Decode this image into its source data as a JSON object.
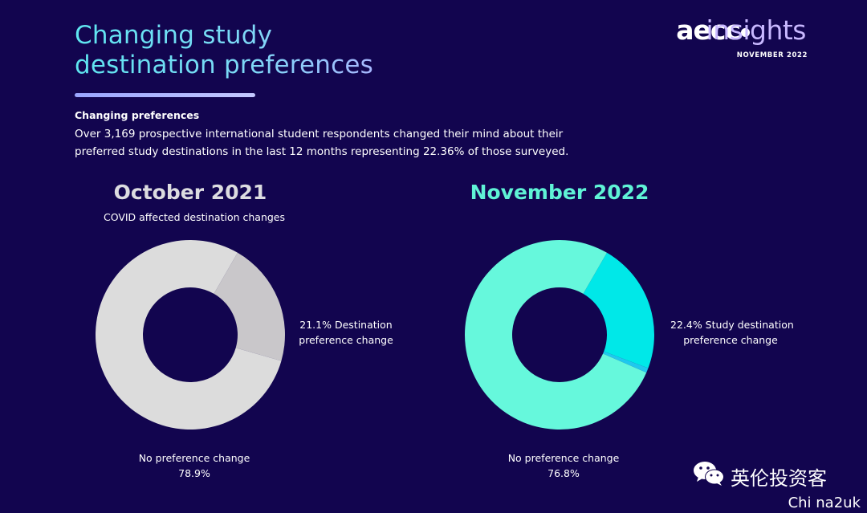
{
  "header": {
    "title_line1": "Changing study",
    "title_line2": "destination preferences"
  },
  "logo": {
    "brand": "aecc",
    "product": "insights",
    "date": "NOVEMBER 2022"
  },
  "intro": {
    "heading": "Changing preferences",
    "line1": "Over 3,169 prospective international student respondents changed their mind about their",
    "line2": "preferred study destinations in the last 12 months representing 22.36% of those surveyed."
  },
  "chart_data": [
    {
      "type": "pie",
      "title": "October 2021",
      "subtitle": "COVID affected destination changes",
      "slices": [
        {
          "label_line1": "21.1% Destination",
          "label_line2": "preference change",
          "value": 21.1,
          "color": "#c9c7ca"
        },
        {
          "label_line1": "No preference change",
          "label_line2": "78.9%",
          "value": 78.9,
          "color": "#dcdcdc"
        }
      ]
    },
    {
      "type": "pie",
      "title": "November 2022",
      "subtitle": "",
      "slices": [
        {
          "label_line1": "22.4% Study destination",
          "label_line2": "preference change",
          "value": 22.4,
          "color": "#00e8e8"
        },
        {
          "label_line1": "",
          "label_line2": "",
          "value": 0.8,
          "color": "#20c8ee"
        },
        {
          "label_line1": "No preference change",
          "label_line2": "76.8%",
          "value": 76.8,
          "color": "#66f8dc"
        }
      ]
    }
  ],
  "watermark": {
    "text": "英伦投资客",
    "id": "Chi na2uk"
  },
  "colors": {
    "background": "#12054f",
    "title_gradient_start": "#5ee6f0",
    "nov_title": "#5ff3d6",
    "oct_title": "#dcdce0"
  }
}
